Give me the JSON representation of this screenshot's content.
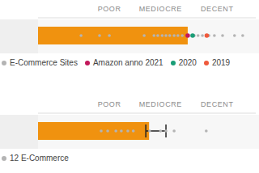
{
  "chart_data": [
    {
      "type": "bar",
      "orientation": "horizontal",
      "xlim": [
        0,
        4
      ],
      "xticks": [
        {
          "value": 1.31,
          "label": "POOR"
        },
        {
          "value": 2.25,
          "label": "MEDIOCRE"
        },
        {
          "value": 3.29,
          "label": "DECENT"
        }
      ],
      "values": [
        2.75
      ],
      "color": "#f0920f",
      "series": [
        {
          "name": "E-Commerce Sites",
          "type": "scatter",
          "color": "#b4b4b4",
          "values": [
            0.79,
            1.13,
            1.31,
            1.95,
            2.13,
            2.2,
            2.28,
            2.35,
            2.42,
            2.5,
            2.57,
            2.65,
            2.87,
            2.94,
            3.02,
            3.14,
            3.24,
            3.39,
            3.61,
            3.76
          ]
        },
        {
          "name": "Amazon anno 2021",
          "type": "scatter",
          "color": "#c2185b",
          "values": [
            2.75
          ]
        },
        {
          "name": "2020",
          "type": "scatter",
          "color": "#1a9e77",
          "values": [
            2.84
          ]
        },
        {
          "name": "2019",
          "type": "scatter",
          "color": "#ef5a3c",
          "values": [
            3.1
          ]
        }
      ]
    },
    {
      "type": "bar",
      "orientation": "horizontal",
      "xlim": [
        0,
        4
      ],
      "xticks": [
        {
          "value": 1.31,
          "label": "POOR"
        },
        {
          "value": 2.25,
          "label": "MEDIOCRE"
        },
        {
          "value": 3.29,
          "label": "DECENT"
        }
      ],
      "values": [
        2.04
      ],
      "error": [
        [
          0.06,
          0.31
        ]
      ],
      "color": "#f0920f",
      "series": [
        {
          "name": "12 E-Commerce",
          "type": "scatter",
          "color": "#b4b4b4",
          "values": [
            1.16,
            1.28,
            1.43,
            1.53,
            1.65,
            1.75,
            2.05,
            2.25,
            2.35,
            2.5,
            3.09
          ]
        }
      ]
    }
  ]
}
